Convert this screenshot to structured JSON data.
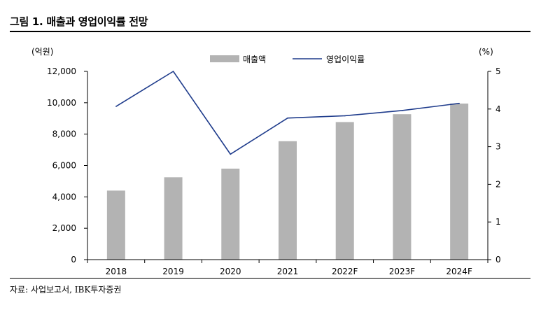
{
  "title": "그림 1. 매출과 영업이익률 전망",
  "source": "자료: 사업보고서, IBK투자증권",
  "colors": {
    "bar": "#b3b3b3",
    "line": "#1f3c8c",
    "axis": "#000000"
  },
  "chart_data": {
    "type": "bar",
    "categories": [
      "2018",
      "2019",
      "2020",
      "2021",
      "2022F",
      "2023F",
      "2024F"
    ],
    "series": [
      {
        "name": "매출액",
        "type": "bar",
        "axis": "left",
        "values": [
          4400,
          5250,
          5800,
          7550,
          8770,
          9270,
          9950
        ]
      },
      {
        "name": "영업이익률",
        "type": "line",
        "axis": "right",
        "values": [
          4.07,
          5.0,
          2.8,
          3.76,
          3.82,
          3.96,
          4.15
        ]
      }
    ],
    "y_left": {
      "unit": "(억원)",
      "min": 0,
      "max": 12000,
      "ticks": [
        0,
        2000,
        4000,
        6000,
        8000,
        10000,
        12000
      ],
      "tick_labels": [
        "0",
        "2,000",
        "4,000",
        "6,000",
        "8,000",
        "10,000",
        "12,000"
      ]
    },
    "y_right": {
      "unit": "(%)",
      "min": 0,
      "max": 5,
      "ticks": [
        0,
        1,
        2,
        3,
        4,
        5
      ],
      "tick_labels": [
        "0",
        "1",
        "2",
        "3",
        "4",
        "5"
      ]
    },
    "grid": false,
    "legend": "top-center"
  }
}
